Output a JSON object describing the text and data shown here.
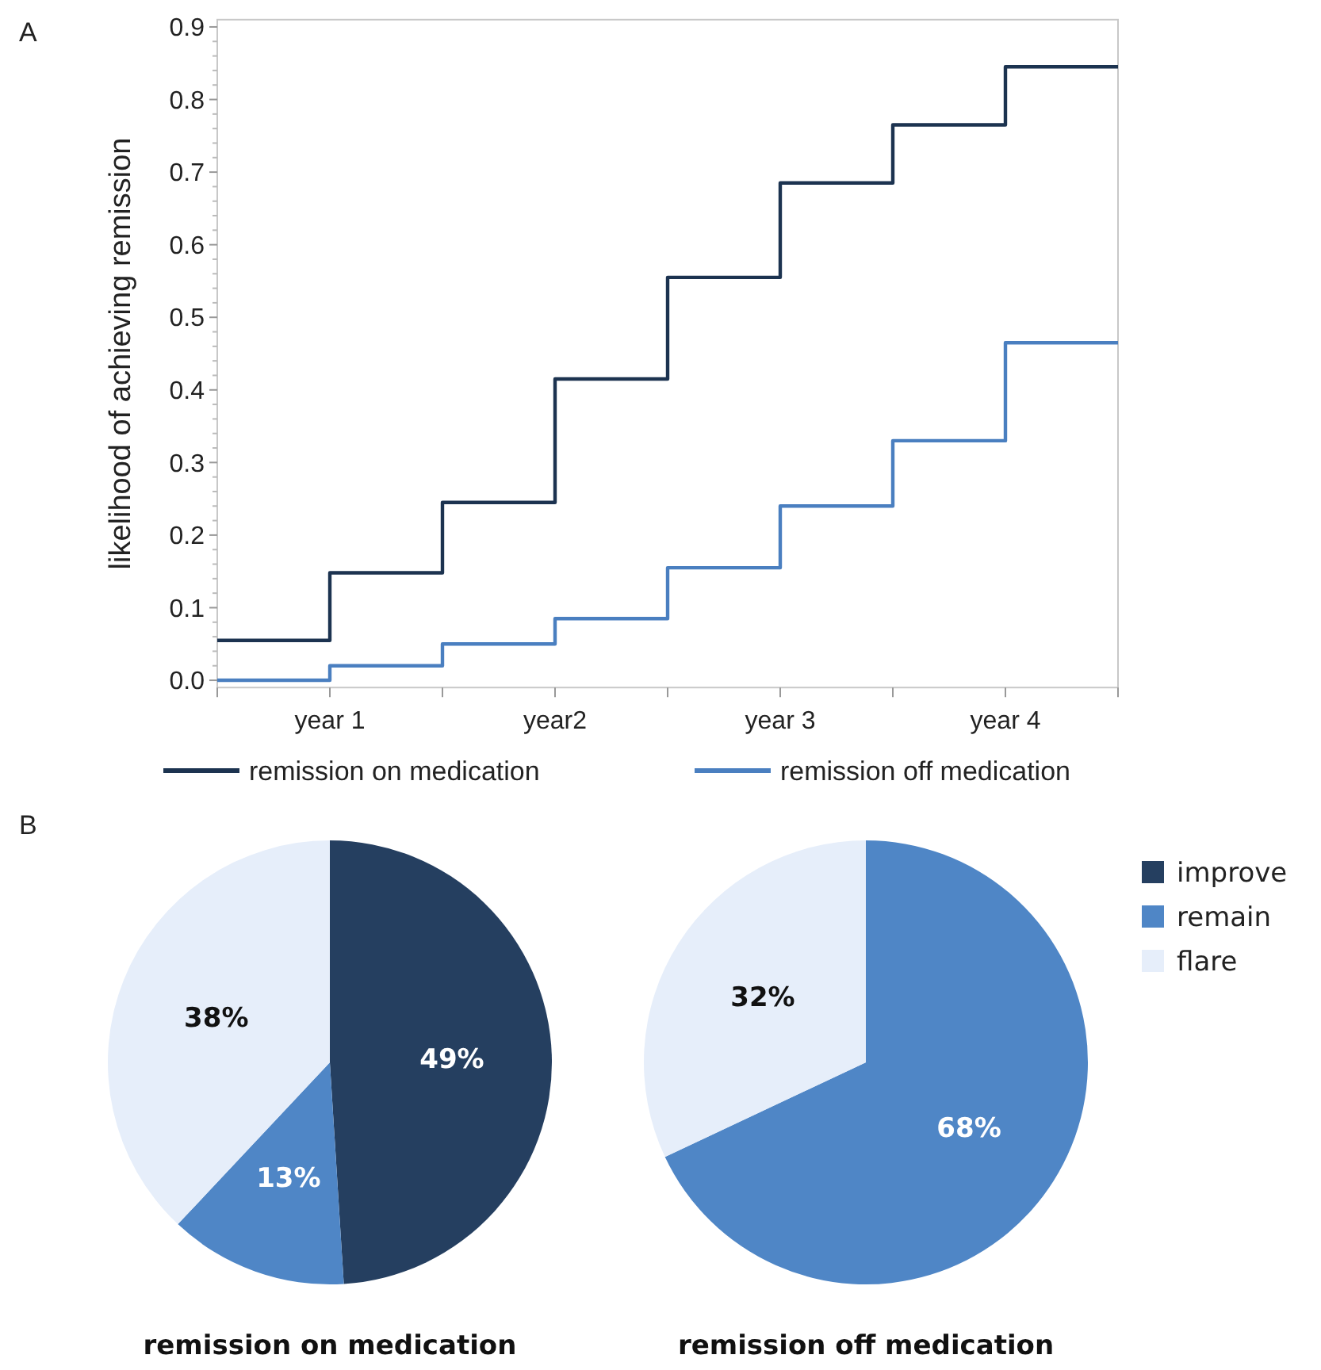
{
  "chart_data": [
    {
      "type": "step",
      "ylabel": "likelihood of achieving remission",
      "annotations": [
        "A"
      ],
      "legend": "bottom",
      "grid": false,
      "marker": "none",
      "line_style": "solid",
      "categories": [
        null,
        "year 1",
        null,
        "year2",
        null,
        "year 3",
        null,
        "year 4",
        null
      ],
      "ylim": [
        -0.01,
        0.91
      ],
      "yticks": [
        {
          "value": 0,
          "label": "0.0"
        },
        0.1,
        0.2,
        0.3,
        0.4,
        0.5,
        0.6,
        0.7,
        0.8,
        0.9
      ],
      "series": [
        {
          "name": "remission on medication",
          "color": "#1c3350",
          "values": [
            0.055,
            0.148,
            0.245,
            0.415,
            0.555,
            0.685,
            0.765,
            0.845,
            0.845
          ]
        },
        {
          "name": "remission off medication",
          "color": "#4a7fc0",
          "values": [
            0,
            0.02,
            0.05,
            0.085,
            0.155,
            0.24,
            0.33,
            0.465,
            0.465
          ]
        }
      ]
    },
    {
      "type": "pie",
      "xlabel": "remission on medication",
      "annotations": [
        "B"
      ],
      "categories": [
        null,
        null,
        null
      ],
      "values": [
        49,
        13,
        38
      ],
      "value_labels": [
        "49%",
        "13%",
        "38%"
      ],
      "colors": [
        "#253f60",
        "#4f86c6",
        "#e6eefa"
      ]
    },
    {
      "type": "pie",
      "xlabel": "remission off medication",
      "legend": "right",
      "categories": [
        "improve",
        "remain",
        "flare"
      ],
      "values": [
        0,
        68,
        32
      ],
      "value_labels": [
        null,
        "68%",
        "32%"
      ],
      "colors": [
        "#253f60",
        "#4f86c6",
        "#e6eefa"
      ]
    }
  ]
}
